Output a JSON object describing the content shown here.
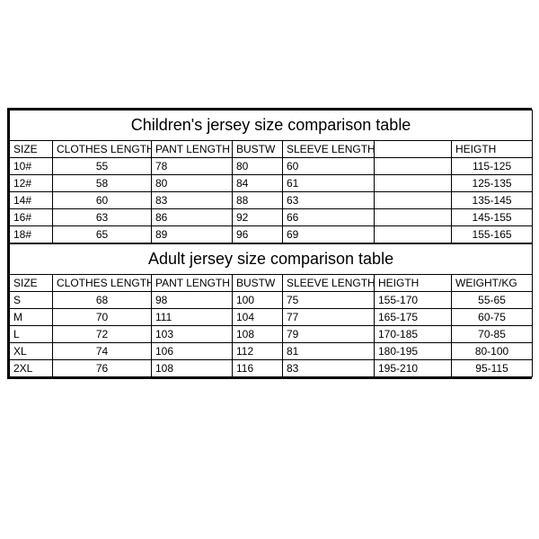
{
  "children": {
    "title": "Children's jersey size comparison table",
    "columns": [
      "SIZE",
      "CLOTHES LENGTH",
      "PANT LENGTH",
      "BUSTW",
      "SLEEVE LENGTH",
      "",
      "HEIGTH"
    ],
    "widths": [
      48,
      110,
      90,
      56,
      102,
      86,
      90
    ],
    "rows": [
      [
        "10#",
        "55",
        "78",
        "80",
        "60",
        "",
        "115-125"
      ],
      [
        "12#",
        "58",
        "80",
        "84",
        "61",
        "",
        "125-135"
      ],
      [
        "14#",
        "60",
        "83",
        "88",
        "63",
        "",
        "135-145"
      ],
      [
        "16#",
        "63",
        "86",
        "92",
        "66",
        "",
        "145-155"
      ],
      [
        "18#",
        "65",
        "89",
        "96",
        "69",
        "",
        "155-165"
      ]
    ]
  },
  "adult": {
    "title": "Adult jersey size comparison table",
    "columns": [
      "SIZE",
      "CLOTHES LENGTH",
      "PANT LENGTH",
      "BUSTW",
      "SLEEVE LENGTH",
      "HEIGTH",
      "WEIGHT/KG"
    ],
    "widths": [
      48,
      110,
      90,
      56,
      102,
      86,
      90
    ],
    "rows": [
      [
        "S",
        "68",
        "98",
        "100",
        "75",
        "155-170",
        "55-65"
      ],
      [
        "M",
        "70",
        "111",
        "104",
        "77",
        "165-175",
        "60-75"
      ],
      [
        "L",
        "72",
        "103",
        "108",
        "79",
        "170-185",
        "70-85"
      ],
      [
        "XL",
        "74",
        "106",
        "112",
        "81",
        "180-195",
        "80-100"
      ],
      [
        "2XL",
        "76",
        "108",
        "116",
        "83",
        "195-210",
        "95-115"
      ]
    ]
  },
  "cell_alignment": {
    "children": [
      "left",
      "center",
      "left",
      "left",
      "left",
      "left",
      "center"
    ],
    "adult": [
      "left",
      "center",
      "left",
      "left",
      "left",
      "left",
      "center"
    ]
  }
}
